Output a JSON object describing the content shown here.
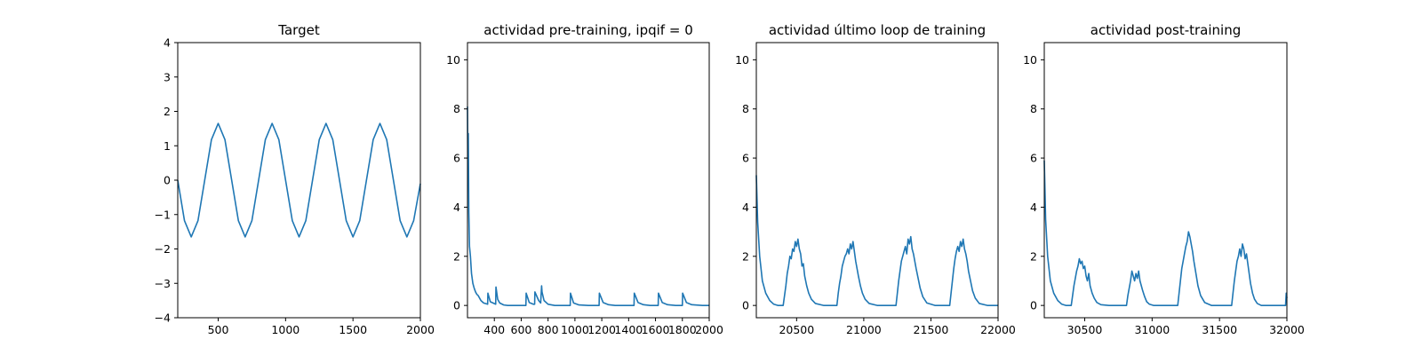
{
  "chart_data": [
    {
      "type": "line",
      "title": "Target",
      "xlabel": "",
      "ylabel": "",
      "xlim": [
        200,
        2000
      ],
      "ylim": [
        -4,
        4
      ],
      "xticks": [
        500,
        1000,
        1500,
        2000
      ],
      "yticks": [
        -4,
        -3,
        -2,
        -1,
        0,
        1,
        2,
        3,
        4
      ],
      "grid": false,
      "series": [
        {
          "color": "#1f77b4",
          "x": [
            200,
            250,
            300,
            350,
            400,
            450,
            500,
            550,
            600,
            650,
            700,
            750,
            800,
            850,
            900,
            950,
            1000,
            1050,
            1100,
            1150,
            1200,
            1250,
            1300,
            1350,
            1400,
            1450,
            1500,
            1550,
            1600,
            1650,
            1700,
            1750,
            1800,
            1850,
            1900,
            1950,
            2000
          ],
          "y": [
            0,
            -1.18,
            -1.65,
            -1.18,
            0,
            1.18,
            1.65,
            1.18,
            0,
            -1.18,
            -1.65,
            -1.18,
            0,
            1.18,
            1.65,
            1.18,
            0,
            -1.18,
            -1.65,
            -1.18,
            0,
            1.18,
            1.65,
            1.18,
            0,
            -1.18,
            -1.65,
            -1.18,
            0,
            1.18,
            1.65,
            1.18,
            0,
            -1.18,
            -1.65,
            -1.18,
            -0.1
          ]
        }
      ]
    },
    {
      "type": "line",
      "title": "actividad pre-training, ipqif = 0",
      "xlabel": "",
      "ylabel": "",
      "xlim": [
        200,
        2000
      ],
      "ylim": [
        -0.5,
        10.7
      ],
      "xticks": [
        400,
        600,
        800,
        1000,
        1200,
        1400,
        1600,
        1800,
        2000
      ],
      "yticks": [
        0,
        2,
        4,
        6,
        8,
        10
      ],
      "grid": false,
      "series": [
        {
          "color": "#1f77b4",
          "x": [
            200,
            203,
            206,
            210,
            215,
            222,
            230,
            240,
            250,
            260,
            270,
            280,
            290,
            300,
            320,
            350,
            352,
            370,
            390,
            410,
            412,
            425,
            440,
            470,
            500,
            550,
            600,
            635,
            637,
            660,
            690,
            700,
            702,
            730,
            745,
            752,
            755,
            770,
            800,
            850,
            900,
            965,
            967,
            990,
            1030,
            1100,
            1180,
            1182,
            1210,
            1250,
            1300,
            1350,
            1440,
            1442,
            1470,
            1510,
            1560,
            1620,
            1622,
            1650,
            1690,
            1750,
            1800,
            1802,
            1830,
            1870,
            1950,
            2000
          ],
          "y": [
            8.1,
            5.2,
            7.0,
            3.8,
            2.4,
            2.0,
            1.3,
            0.9,
            0.7,
            0.55,
            0.45,
            0.4,
            0.3,
            0.2,
            0.1,
            0.05,
            0.5,
            0.15,
            0.1,
            0.05,
            0.75,
            0.25,
            0.1,
            0.02,
            0.0,
            0.0,
            0.0,
            0.0,
            0.5,
            0.12,
            0.05,
            0.05,
            0.55,
            0.2,
            0.1,
            0.8,
            0.55,
            0.2,
            0.05,
            0.0,
            0.0,
            0.0,
            0.5,
            0.1,
            0.02,
            0.0,
            0.0,
            0.5,
            0.12,
            0.03,
            0.0,
            0.0,
            0.0,
            0.5,
            0.12,
            0.03,
            0.0,
            0.0,
            0.5,
            0.12,
            0.03,
            0.0,
            0.0,
            0.5,
            0.12,
            0.03,
            0.0,
            0.0
          ]
        }
      ]
    },
    {
      "type": "line",
      "title": "actividad último loop de training",
      "xlabel": "",
      "ylabel": "",
      "xlim": [
        20200,
        22000
      ],
      "ylim": [
        -0.5,
        10.7
      ],
      "xticks": [
        20500,
        21000,
        21500,
        22000
      ],
      "yticks": [
        0,
        2,
        4,
        6,
        8,
        10
      ],
      "grid": false,
      "series": [
        {
          "color": "#1f77b4",
          "x": [
            20200,
            20210,
            20225,
            20245,
            20270,
            20300,
            20330,
            20360,
            20400,
            20410,
            20420,
            20430,
            20440,
            20450,
            20460,
            20470,
            20480,
            20490,
            20500,
            20510,
            20520,
            20530,
            20540,
            20550,
            20560,
            20575,
            20590,
            20610,
            20640,
            20700,
            20800,
            20810,
            20820,
            20830,
            20840,
            20850,
            20860,
            20870,
            20880,
            20890,
            20900,
            20910,
            20920,
            20930,
            20940,
            20950,
            20960,
            20975,
            20990,
            21010,
            21040,
            21100,
            21200,
            21240,
            21250,
            21260,
            21270,
            21280,
            21290,
            21300,
            21310,
            21320,
            21330,
            21340,
            21350,
            21360,
            21370,
            21380,
            21390,
            21405,
            21420,
            21440,
            21470,
            21530,
            21600,
            21640,
            21650,
            21660,
            21670,
            21680,
            21690,
            21700,
            21710,
            21720,
            21730,
            21740,
            21750,
            21760,
            21770,
            21780,
            21795,
            21810,
            21830,
            21860,
            21920,
            22000
          ],
          "y": [
            5.3,
            3.4,
            2.0,
            1.0,
            0.5,
            0.2,
            0.05,
            0.0,
            0.0,
            0.4,
            0.8,
            1.3,
            1.6,
            2.0,
            1.9,
            2.3,
            2.2,
            2.6,
            2.4,
            2.7,
            2.3,
            2.1,
            1.6,
            1.7,
            1.2,
            0.8,
            0.5,
            0.25,
            0.08,
            0.0,
            0.0,
            0.5,
            0.9,
            1.2,
            1.6,
            1.8,
            2.0,
            2.1,
            2.3,
            2.1,
            2.5,
            2.3,
            2.6,
            2.2,
            1.8,
            1.5,
            1.2,
            0.8,
            0.5,
            0.25,
            0.08,
            0.0,
            0.0,
            0.0,
            0.5,
            1.0,
            1.4,
            1.8,
            2.0,
            2.2,
            2.4,
            2.1,
            2.7,
            2.5,
            2.8,
            2.3,
            2.1,
            1.8,
            1.5,
            1.1,
            0.7,
            0.35,
            0.1,
            0.0,
            0.0,
            0.0,
            0.5,
            1.0,
            1.5,
            1.9,
            2.2,
            2.4,
            2.2,
            2.6,
            2.4,
            2.7,
            2.3,
            2.1,
            1.8,
            1.4,
            1.0,
            0.6,
            0.3,
            0.08,
            0.0,
            0.0
          ]
        }
      ]
    },
    {
      "type": "line",
      "title": "actividad post-training",
      "xlabel": "",
      "ylabel": "",
      "xlim": [
        30200,
        32000
      ],
      "ylim": [
        -0.5,
        10.7
      ],
      "xticks": [
        30500,
        31000,
        31500,
        32000
      ],
      "yticks": [
        0,
        2,
        4,
        6,
        8,
        10
      ],
      "grid": false,
      "series": [
        {
          "color": "#1f77b4",
          "x": [
            30200,
            30210,
            30225,
            30245,
            30270,
            30300,
            30330,
            30360,
            30400,
            30410,
            30420,
            30430,
            30440,
            30450,
            30460,
            30470,
            30480,
            30490,
            30500,
            30510,
            30520,
            30530,
            30540,
            30555,
            30570,
            30590,
            30620,
            30680,
            30760,
            30810,
            30820,
            30830,
            30840,
            30850,
            30860,
            30870,
            30880,
            30890,
            30900,
            30910,
            30920,
            30930,
            30945,
            30960,
            30980,
            31010,
            31060,
            31140,
            31190,
            31200,
            31210,
            31220,
            31230,
            31240,
            31250,
            31260,
            31270,
            31280,
            31290,
            31300,
            31310,
            31325,
            31340,
            31360,
            31390,
            31440,
            31520,
            31590,
            31600,
            31610,
            31620,
            31630,
            31640,
            31650,
            31660,
            31670,
            31680,
            31690,
            31700,
            31710,
            31720,
            31730,
            31745,
            31760,
            31780,
            31810,
            31870,
            31940,
            31990,
            31995,
            32000
          ],
          "y": [
            5.9,
            3.5,
            2.0,
            1.0,
            0.5,
            0.2,
            0.05,
            0.0,
            0.0,
            0.4,
            0.8,
            1.1,
            1.4,
            1.6,
            1.9,
            1.7,
            1.8,
            1.5,
            1.6,
            1.2,
            1.0,
            1.3,
            0.8,
            0.5,
            0.3,
            0.12,
            0.03,
            0.0,
            0.0,
            0.0,
            0.4,
            0.7,
            1.0,
            1.4,
            1.2,
            1.0,
            1.3,
            1.1,
            1.4,
            1.0,
            0.8,
            0.6,
            0.35,
            0.15,
            0.05,
            0.0,
            0.0,
            0.0,
            0.0,
            0.5,
            1.0,
            1.5,
            1.8,
            2.1,
            2.4,
            2.6,
            3.0,
            2.8,
            2.5,
            2.2,
            1.8,
            1.3,
            0.8,
            0.4,
            0.12,
            0.0,
            0.0,
            0.0,
            0.5,
            1.0,
            1.4,
            1.8,
            2.0,
            2.3,
            2.0,
            2.5,
            2.3,
            1.9,
            2.1,
            1.7,
            1.3,
            0.9,
            0.5,
            0.25,
            0.08,
            0.0,
            0.0,
            0.0,
            0.0,
            0.5,
            0.3
          ]
        }
      ]
    }
  ]
}
